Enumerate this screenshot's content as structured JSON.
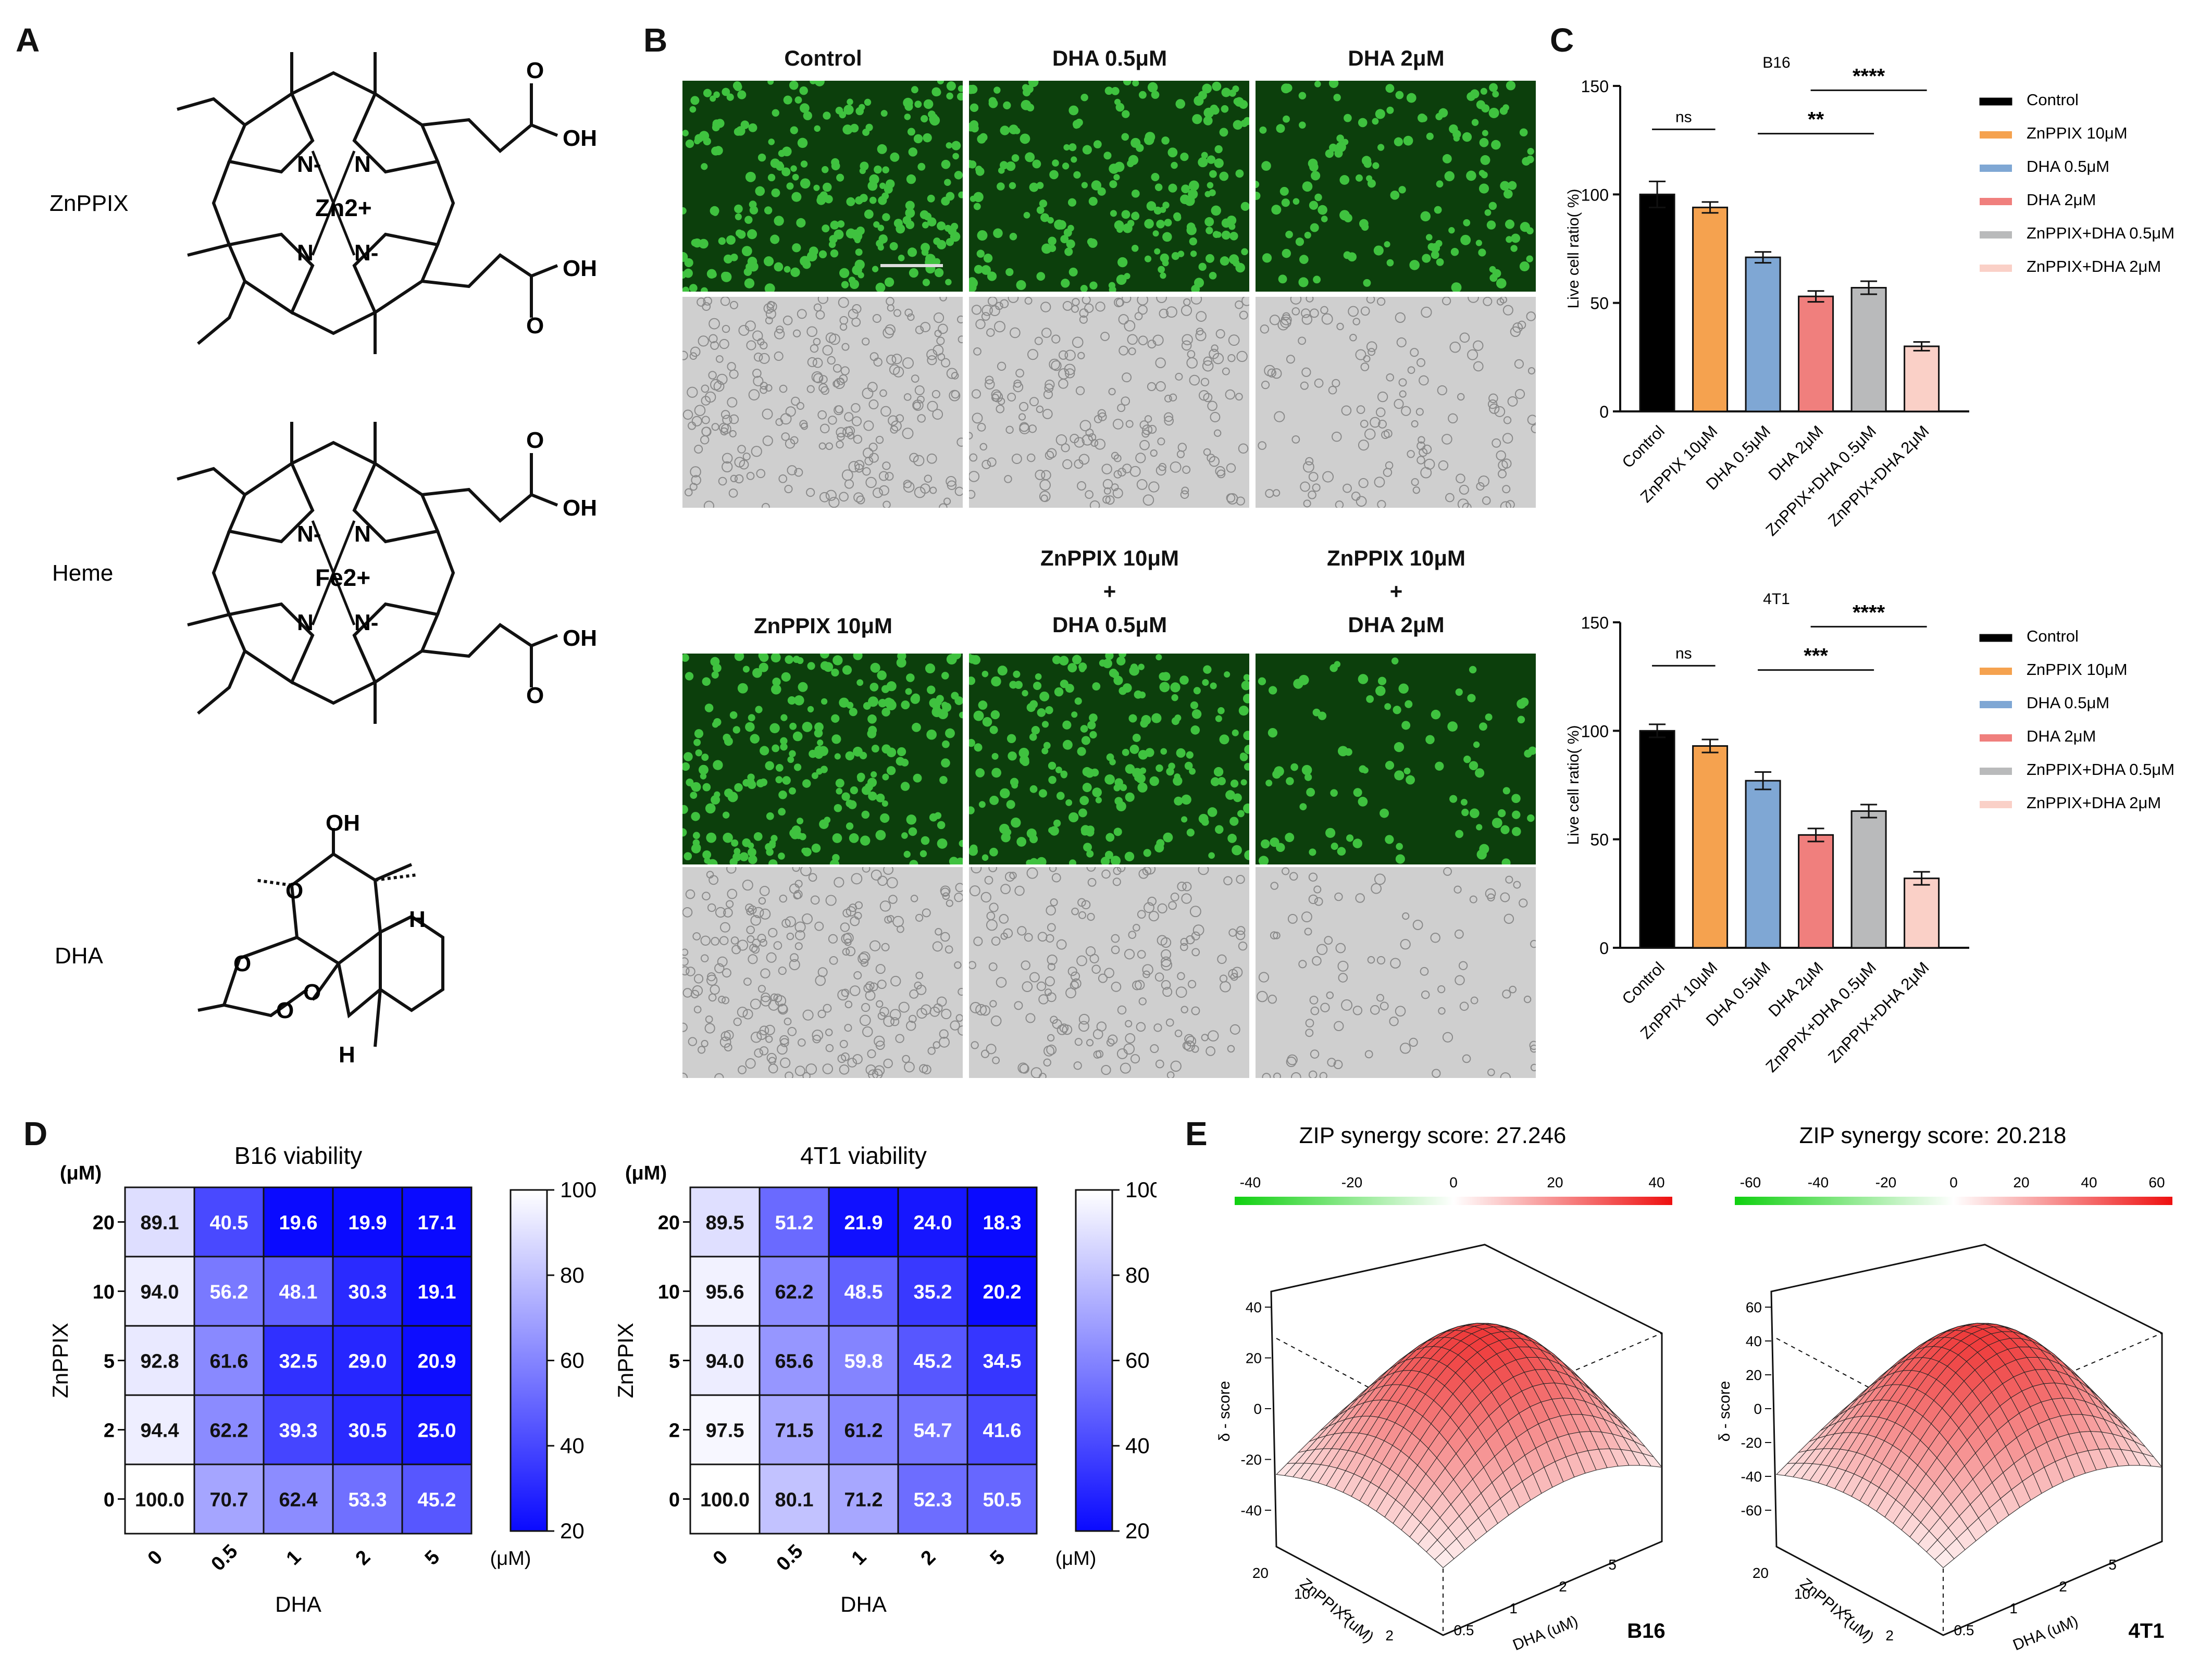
{
  "panels": {
    "A": "A",
    "B": "B",
    "C": "C",
    "D": "D",
    "E": "E"
  },
  "panelA": {
    "compounds": [
      {
        "name": "ZnPPIX",
        "metal": "Zn2+",
        "labels": [
          "O",
          "OH",
          "OH",
          "O",
          "N-",
          "N",
          "N",
          "N-"
        ]
      },
      {
        "name": "Heme",
        "metal": "Fe2+",
        "labels": [
          "O",
          "OH",
          "OH",
          "O",
          "N-",
          "N",
          "N",
          "N-"
        ]
      },
      {
        "name": "DHA",
        "labels": [
          "OH",
          "O",
          "O",
          "O",
          "O",
          "H",
          "H"
        ]
      }
    ]
  },
  "panelB": {
    "top_titles": [
      "Control",
      "DHA 0.5μM",
      "DHA 2μM"
    ],
    "bottom_titles": [
      "ZnPPIX 10μM",
      "ZnPPIX 10μM\n+\nDHA 0.5μM",
      "ZnPPIX 10μM\n+\nDHA 2μM"
    ],
    "colors": {
      "fluor_bg": "#0c3f0c",
      "fluor_cell": "#3fc23f",
      "bright_bg": "#cfcfcf"
    }
  },
  "panelC": {
    "legend": [
      "Control",
      "ZnPPIX 10μM",
      "DHA 0.5μM",
      "DHA 2μM",
      "ZnPPIX+DHA 0.5μM",
      "ZnPPIX+DHA 2μM"
    ],
    "colors": [
      "#000000",
      "#f5a24f",
      "#7fa7d4",
      "#f07f7d",
      "#b9babb",
      "#fad0c7"
    ]
  },
  "panelE": {
    "charts": [
      {
        "title": "ZIP synergy score: 27.246",
        "scale_ticks": [
          "-40",
          "-20",
          "0",
          "20",
          "40"
        ],
        "zlabel": "δ - score",
        "z_ticks": [
          "40",
          "20",
          "0",
          "-20",
          "-40"
        ],
        "x_ticks": [
          "0.5",
          "1",
          "2",
          "5"
        ],
        "y_ticks": [
          "20",
          "10",
          "5",
          "2"
        ],
        "xlabel": "DHA (uM)",
        "ylabel": "ZnPPIX (uM)",
        "tag": "B16"
      },
      {
        "title": "ZIP synergy score: 20.218",
        "scale_ticks": [
          "-60",
          "-40",
          "-20",
          "0",
          "20",
          "40",
          "60"
        ],
        "zlabel": "δ - score",
        "z_ticks": [
          "60",
          "40",
          "20",
          "0",
          "-20",
          "-40",
          "-60"
        ],
        "x_ticks": [
          "0.5",
          "1",
          "2",
          "5"
        ],
        "y_ticks": [
          "20",
          "10",
          "5",
          "2"
        ],
        "xlabel": "DHA (uM)",
        "ylabel": "ZnPPIX (uM)",
        "tag": "4T1"
      }
    ]
  },
  "chart_data": [
    {
      "type": "bar",
      "title": "B16",
      "ylabel": "Live cell ratio( %)",
      "ylim": [
        0,
        150
      ],
      "yticks": [
        0,
        50,
        100,
        150
      ],
      "categories": [
        "Control",
        "ZnPPIX 10μM",
        "DHA 0.5μM",
        "DHA 2μM",
        "ZnPPIX+DHA 0.5μM",
        "ZnPPIX+DHA 2μM"
      ],
      "values": [
        100,
        94,
        71,
        53,
        57,
        30
      ],
      "errors": [
        6,
        2.5,
        2.5,
        2.5,
        3,
        2
      ],
      "significance": [
        {
          "label": "ns",
          "from": 0,
          "to": 1
        },
        {
          "label": "**",
          "from": 2,
          "to": 4
        },
        {
          "label": "****",
          "from": 3,
          "to": 5
        }
      ]
    },
    {
      "type": "bar",
      "title": "4T1",
      "ylabel": "Live cell ratio( %)",
      "ylim": [
        0,
        150
      ],
      "yticks": [
        0,
        50,
        100,
        150
      ],
      "categories": [
        "Control",
        "ZnPPIX 10μM",
        "DHA 0.5μM",
        "DHA 2μM",
        "ZnPPIX+DHA 0.5μM",
        "ZnPPIX+DHA 2μM"
      ],
      "values": [
        100,
        93,
        77,
        52,
        63,
        32
      ],
      "errors": [
        3,
        3,
        4,
        3,
        3,
        3
      ],
      "significance": [
        {
          "label": "ns",
          "from": 0,
          "to": 1
        },
        {
          "label": "***",
          "from": 2,
          "to": 4
        },
        {
          "label": "****",
          "from": 3,
          "to": 5
        }
      ]
    },
    {
      "type": "heatmap",
      "title": "B16 viability",
      "xlabel": "DHA",
      "ylabel": "ZnPPIX",
      "unit": "(μM)",
      "x": [
        "0",
        "0.5",
        "1",
        "2",
        "5"
      ],
      "y": [
        "20",
        "10",
        "5",
        "2",
        "0"
      ],
      "values": [
        [
          89.1,
          40.5,
          19.6,
          19.9,
          17.1
        ],
        [
          94.0,
          56.2,
          48.1,
          30.3,
          19.1
        ],
        [
          92.8,
          61.6,
          32.5,
          29.0,
          20.9
        ],
        [
          94.4,
          62.2,
          39.3,
          30.5,
          25.0
        ],
        [
          100.0,
          70.7,
          62.4,
          53.3,
          45.2
        ]
      ],
      "colorbar": {
        "min": 20,
        "max": 100,
        "ticks": [
          100,
          80,
          60,
          40,
          20
        ]
      }
    },
    {
      "type": "heatmap",
      "title": "4T1 viability",
      "xlabel": "DHA",
      "ylabel": "ZnPPIX",
      "unit": "(μM)",
      "x": [
        "0",
        "0.5",
        "1",
        "2",
        "5"
      ],
      "y": [
        "20",
        "10",
        "5",
        "2",
        "0"
      ],
      "values": [
        [
          89.5,
          51.2,
          21.9,
          24.0,
          18.3
        ],
        [
          95.6,
          62.2,
          48.5,
          35.2,
          20.2
        ],
        [
          94.0,
          65.6,
          59.8,
          45.2,
          34.5
        ],
        [
          97.5,
          71.5,
          61.2,
          54.7,
          41.6
        ],
        [
          100.0,
          80.1,
          71.2,
          52.3,
          50.5
        ]
      ],
      "colorbar": {
        "min": 20,
        "max": 100,
        "ticks": [
          100,
          80,
          60,
          40,
          20
        ]
      }
    }
  ]
}
